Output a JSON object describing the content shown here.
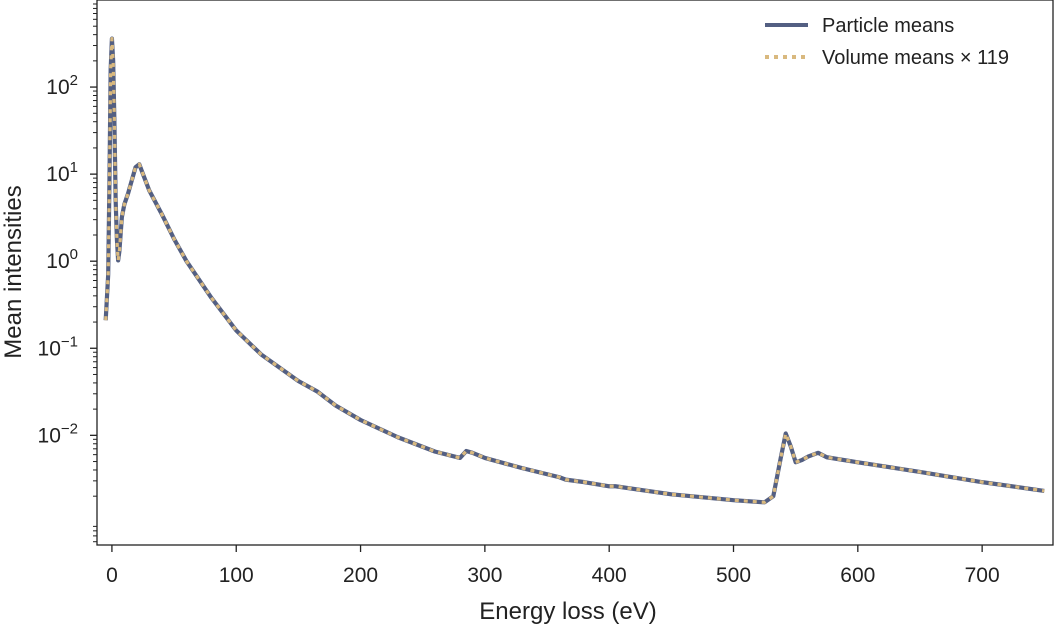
{
  "chart_data": {
    "type": "line",
    "xlabel": "Energy loss (eV)",
    "ylabel": "Mean intensities",
    "xlim": [
      -12,
      757
    ],
    "ylim": [
      0.00055,
      1000
    ],
    "yscale": "log",
    "x_ticks": [
      0,
      100,
      200,
      300,
      400,
      500,
      600,
      700
    ],
    "x_tick_labels": [
      "0",
      "100",
      "200",
      "300",
      "400",
      "500",
      "600",
      "700"
    ],
    "y_ticks": [
      {
        "value": 0.01,
        "base": "10",
        "exp": "−2"
      },
      {
        "value": 0.1,
        "base": "10",
        "exp": "−1"
      },
      {
        "value": 1,
        "base": "10",
        "exp": "0"
      },
      {
        "value": 10,
        "base": "10",
        "exp": "1"
      },
      {
        "value": 100,
        "base": "10",
        "exp": "2"
      }
    ],
    "grid": false,
    "legend_position": "top-right",
    "colors": {
      "particle": "#535f82",
      "volume": "#d9b97f"
    },
    "series": [
      {
        "name": "Particle means",
        "style": "solid",
        "x": [
          -5,
          -3,
          -2,
          -1,
          0,
          1,
          2,
          3,
          4,
          5,
          6,
          8,
          10,
          13,
          16,
          19,
          22,
          25,
          30,
          40,
          50,
          60,
          80,
          100,
          120,
          150,
          165,
          180,
          200,
          230,
          260,
          280,
          285,
          290,
          300,
          330,
          360,
          365,
          380,
          400,
          405,
          450,
          500,
          525,
          532,
          538,
          542,
          546,
          550,
          555,
          560,
          568,
          575,
          600,
          650,
          700,
          750
        ],
        "values": [
          0.21,
          0.7,
          8,
          160,
          360,
          200,
          40,
          5,
          1.8,
          1.02,
          1.3,
          3.2,
          4.5,
          6,
          8.5,
          12,
          13,
          10,
          6.5,
          3.5,
          1.8,
          1.0,
          0.38,
          0.16,
          0.085,
          0.042,
          0.032,
          0.022,
          0.015,
          0.0095,
          0.0065,
          0.0055,
          0.0066,
          0.0063,
          0.0055,
          0.0042,
          0.0033,
          0.0031,
          0.0029,
          0.0026,
          0.0026,
          0.0021,
          0.0018,
          0.0017,
          0.002,
          0.0055,
          0.0105,
          0.0075,
          0.0049,
          0.0052,
          0.0057,
          0.0063,
          0.0056,
          0.0049,
          0.0038,
          0.0029,
          0.0023
        ]
      },
      {
        "name": "Volume means × 119",
        "style": "dotted",
        "x": [
          -5,
          -3,
          -2,
          -1,
          0,
          1,
          2,
          3,
          4,
          5,
          6,
          8,
          10,
          13,
          16,
          19,
          22,
          25,
          30,
          40,
          50,
          60,
          80,
          100,
          120,
          150,
          165,
          180,
          200,
          230,
          260,
          280,
          285,
          290,
          300,
          330,
          360,
          365,
          380,
          400,
          405,
          450,
          500,
          525,
          532,
          538,
          542,
          546,
          550,
          555,
          560,
          568,
          575,
          600,
          650,
          700,
          750
        ],
        "values": [
          0.21,
          0.7,
          8,
          160,
          360,
          200,
          40,
          5,
          1.8,
          1.02,
          1.3,
          3.2,
          4.5,
          6,
          8.5,
          12,
          13,
          10,
          6.5,
          3.5,
          1.8,
          1.0,
          0.38,
          0.16,
          0.085,
          0.042,
          0.032,
          0.022,
          0.015,
          0.0095,
          0.0065,
          0.0055,
          0.0066,
          0.0063,
          0.0055,
          0.0042,
          0.0033,
          0.0031,
          0.0029,
          0.0026,
          0.0026,
          0.0021,
          0.0018,
          0.0017,
          0.002,
          0.0055,
          0.0105,
          0.0075,
          0.0049,
          0.0052,
          0.0057,
          0.0063,
          0.0056,
          0.0049,
          0.0038,
          0.0029,
          0.0023
        ]
      }
    ]
  }
}
